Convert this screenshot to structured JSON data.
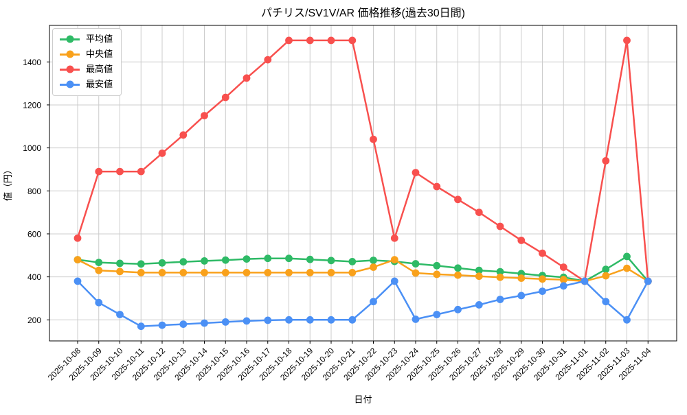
{
  "page": {
    "background": "#ffffff"
  },
  "chart_data": {
    "type": "line",
    "title": "パチリス/SV1V/AR 価格推移(過去30日間)",
    "xlabel": "日付",
    "ylabel": "値（円）",
    "grid": true,
    "legend_position": "upper-left",
    "x_tick_labels": [
      "2025-10-08",
      "2025-10-09",
      "2025-10-10",
      "2025-10-11",
      "2025-10-12",
      "2025-10-13",
      "2025-10-14",
      "2025-10-15",
      "2025-10-16",
      "2025-10-17",
      "2025-10-18",
      "2025-10-19",
      "2025-10-20",
      "2025-10-21",
      "2025-10-22",
      "2025-10-23",
      "2025-10-24",
      "2025-10-25",
      "2025-10-26",
      "2025-10-27",
      "2025-10-28",
      "2025-10-29",
      "2025-10-30",
      "2025-10-31",
      "2025-11-01",
      "2025-11-02",
      "2025-11-03",
      "2025-11-04"
    ],
    "yticks": [
      200,
      400,
      600,
      800,
      1000,
      1200,
      1400
    ],
    "ylim": [
      102,
      1570
    ],
    "colors": {
      "grid": "#cccccc",
      "spine": "#000000",
      "text": "#000000"
    },
    "series": [
      {
        "key": "avg",
        "name": "平均値",
        "color": "#2eba66",
        "values": [
          480,
          467,
          463,
          460,
          465,
          470,
          474,
          478,
          483,
          486,
          486,
          481,
          476,
          471,
          477,
          472,
          461,
          452,
          441,
          430,
          424,
          415,
          406,
          398,
          380,
          435,
          495,
          380
        ]
      },
      {
        "key": "median",
        "name": "中央値",
        "color": "#f9a11b",
        "values": [
          480,
          430,
          425,
          420,
          420,
          420,
          420,
          420,
          420,
          420,
          420,
          420,
          420,
          420,
          445,
          480,
          418,
          412,
          408,
          403,
          398,
          394,
          390,
          387,
          380,
          405,
          440,
          380
        ]
      },
      {
        "key": "max",
        "name": "最高値",
        "color": "#f8504e",
        "values": [
          580,
          890,
          890,
          890,
          975,
          1060,
          1150,
          1235,
          1325,
          1410,
          1500,
          1500,
          1500,
          1500,
          1040,
          580,
          885,
          820,
          760,
          700,
          635,
          570,
          510,
          445,
          380,
          940,
          1500,
          380
        ]
      },
      {
        "key": "min",
        "name": "最安値",
        "color": "#4b90f5",
        "values": [
          380,
          280,
          225,
          170,
          175,
          180,
          185,
          190,
          195,
          198,
          200,
          200,
          200,
          200,
          285,
          380,
          203,
          225,
          248,
          270,
          295,
          313,
          333,
          358,
          380,
          285,
          200,
          380
        ]
      }
    ]
  }
}
